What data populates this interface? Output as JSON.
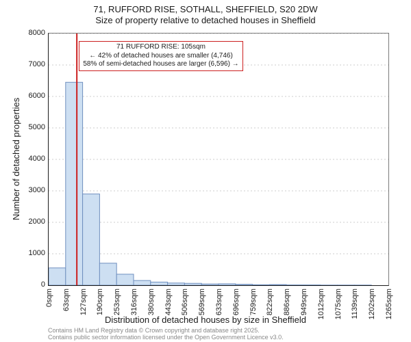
{
  "title_line1": "71, RUFFORD RISE, SOTHALL, SHEFFIELD, S20 2DW",
  "title_line2": "Size of property relative to detached houses in Sheffield",
  "y_axis_label": "Number of detached properties",
  "x_axis_label": "Distribution of detached houses by size in Sheffield",
  "footer_line1": "Contains HM Land Registry data © Crown copyright and database right 2025.",
  "footer_line2": "Contains public sector information licensed under the Open Government Licence v3.0.",
  "chart": {
    "type": "histogram",
    "background_color": "#ffffff",
    "grid_color": "#cccccc",
    "axis_color": "#1a1a1a",
    "bar_fill": "#cddff2",
    "bar_stroke": "#6f8fbf",
    "ref_line_color": "#cc1e1e",
    "annotation_border": "#cc1e1e",
    "annotation_bg": "#ffffff",
    "ylim": [
      0,
      8000
    ],
    "yticks": [
      0,
      1000,
      2000,
      3000,
      4000,
      5000,
      6000,
      7000,
      8000
    ],
    "xtick_labels": [
      "0sqm",
      "63sqm",
      "127sqm",
      "190sqm",
      "253sqm",
      "316sqm",
      "380sqm",
      "443sqm",
      "506sqm",
      "569sqm",
      "633sqm",
      "696sqm",
      "759sqm",
      "822sqm",
      "886sqm",
      "949sqm",
      "1012sqm",
      "1075sqm",
      "1139sqm",
      "1202sqm",
      "1265sqm"
    ],
    "bin_values": [
      550,
      6450,
      2900,
      700,
      350,
      150,
      100,
      70,
      60,
      40,
      45,
      30,
      15,
      20,
      10,
      10,
      5,
      5,
      5,
      0
    ],
    "ref_value_sqm": 105,
    "x_max_sqm": 1265,
    "annotation": {
      "line1": "71 RUFFORD RISE: 105sqm",
      "line2": "← 42% of detached houses are smaller (4,746)",
      "line3": "58% of semi-detached houses are larger (6,596) →"
    }
  }
}
